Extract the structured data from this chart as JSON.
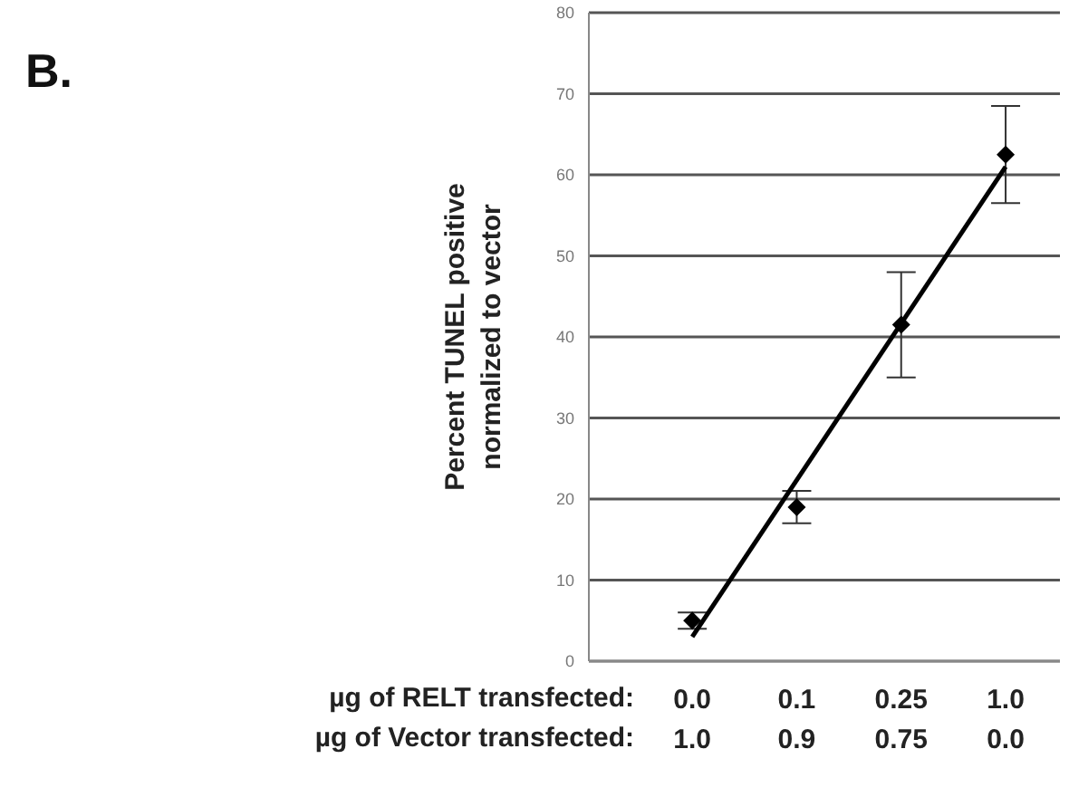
{
  "chart_data": {
    "type": "scatter",
    "ylabel": "Percent TUNEL positive\nnormalized to vector",
    "xlabel": "µg of RELT transfected:\nµg of Vector transfected:",
    "annotations": [
      "B."
    ],
    "categories": [
      "0.0\n1.0",
      "0.1\n0.9",
      "0.25\n0.75",
      "1.0\n0.0"
    ],
    "series": [
      {
        "color": "#000000",
        "values": [
          5,
          19,
          41.5,
          62.5
        ],
        "errors": [
          1,
          2,
          6.5,
          6
        ],
        "marker": "diamond"
      },
      {
        "type": "line",
        "color": "#000000",
        "x": [
          "0.0\n1.0",
          "1.0\n0.0"
        ],
        "values": [
          3,
          61
        ],
        "marker": "none"
      }
    ],
    "ylim": [
      0,
      80
    ],
    "yticks": [
      0,
      10,
      20,
      30,
      40,
      50,
      60,
      70,
      80
    ],
    "grid": "y",
    "line_style": "solid"
  }
}
